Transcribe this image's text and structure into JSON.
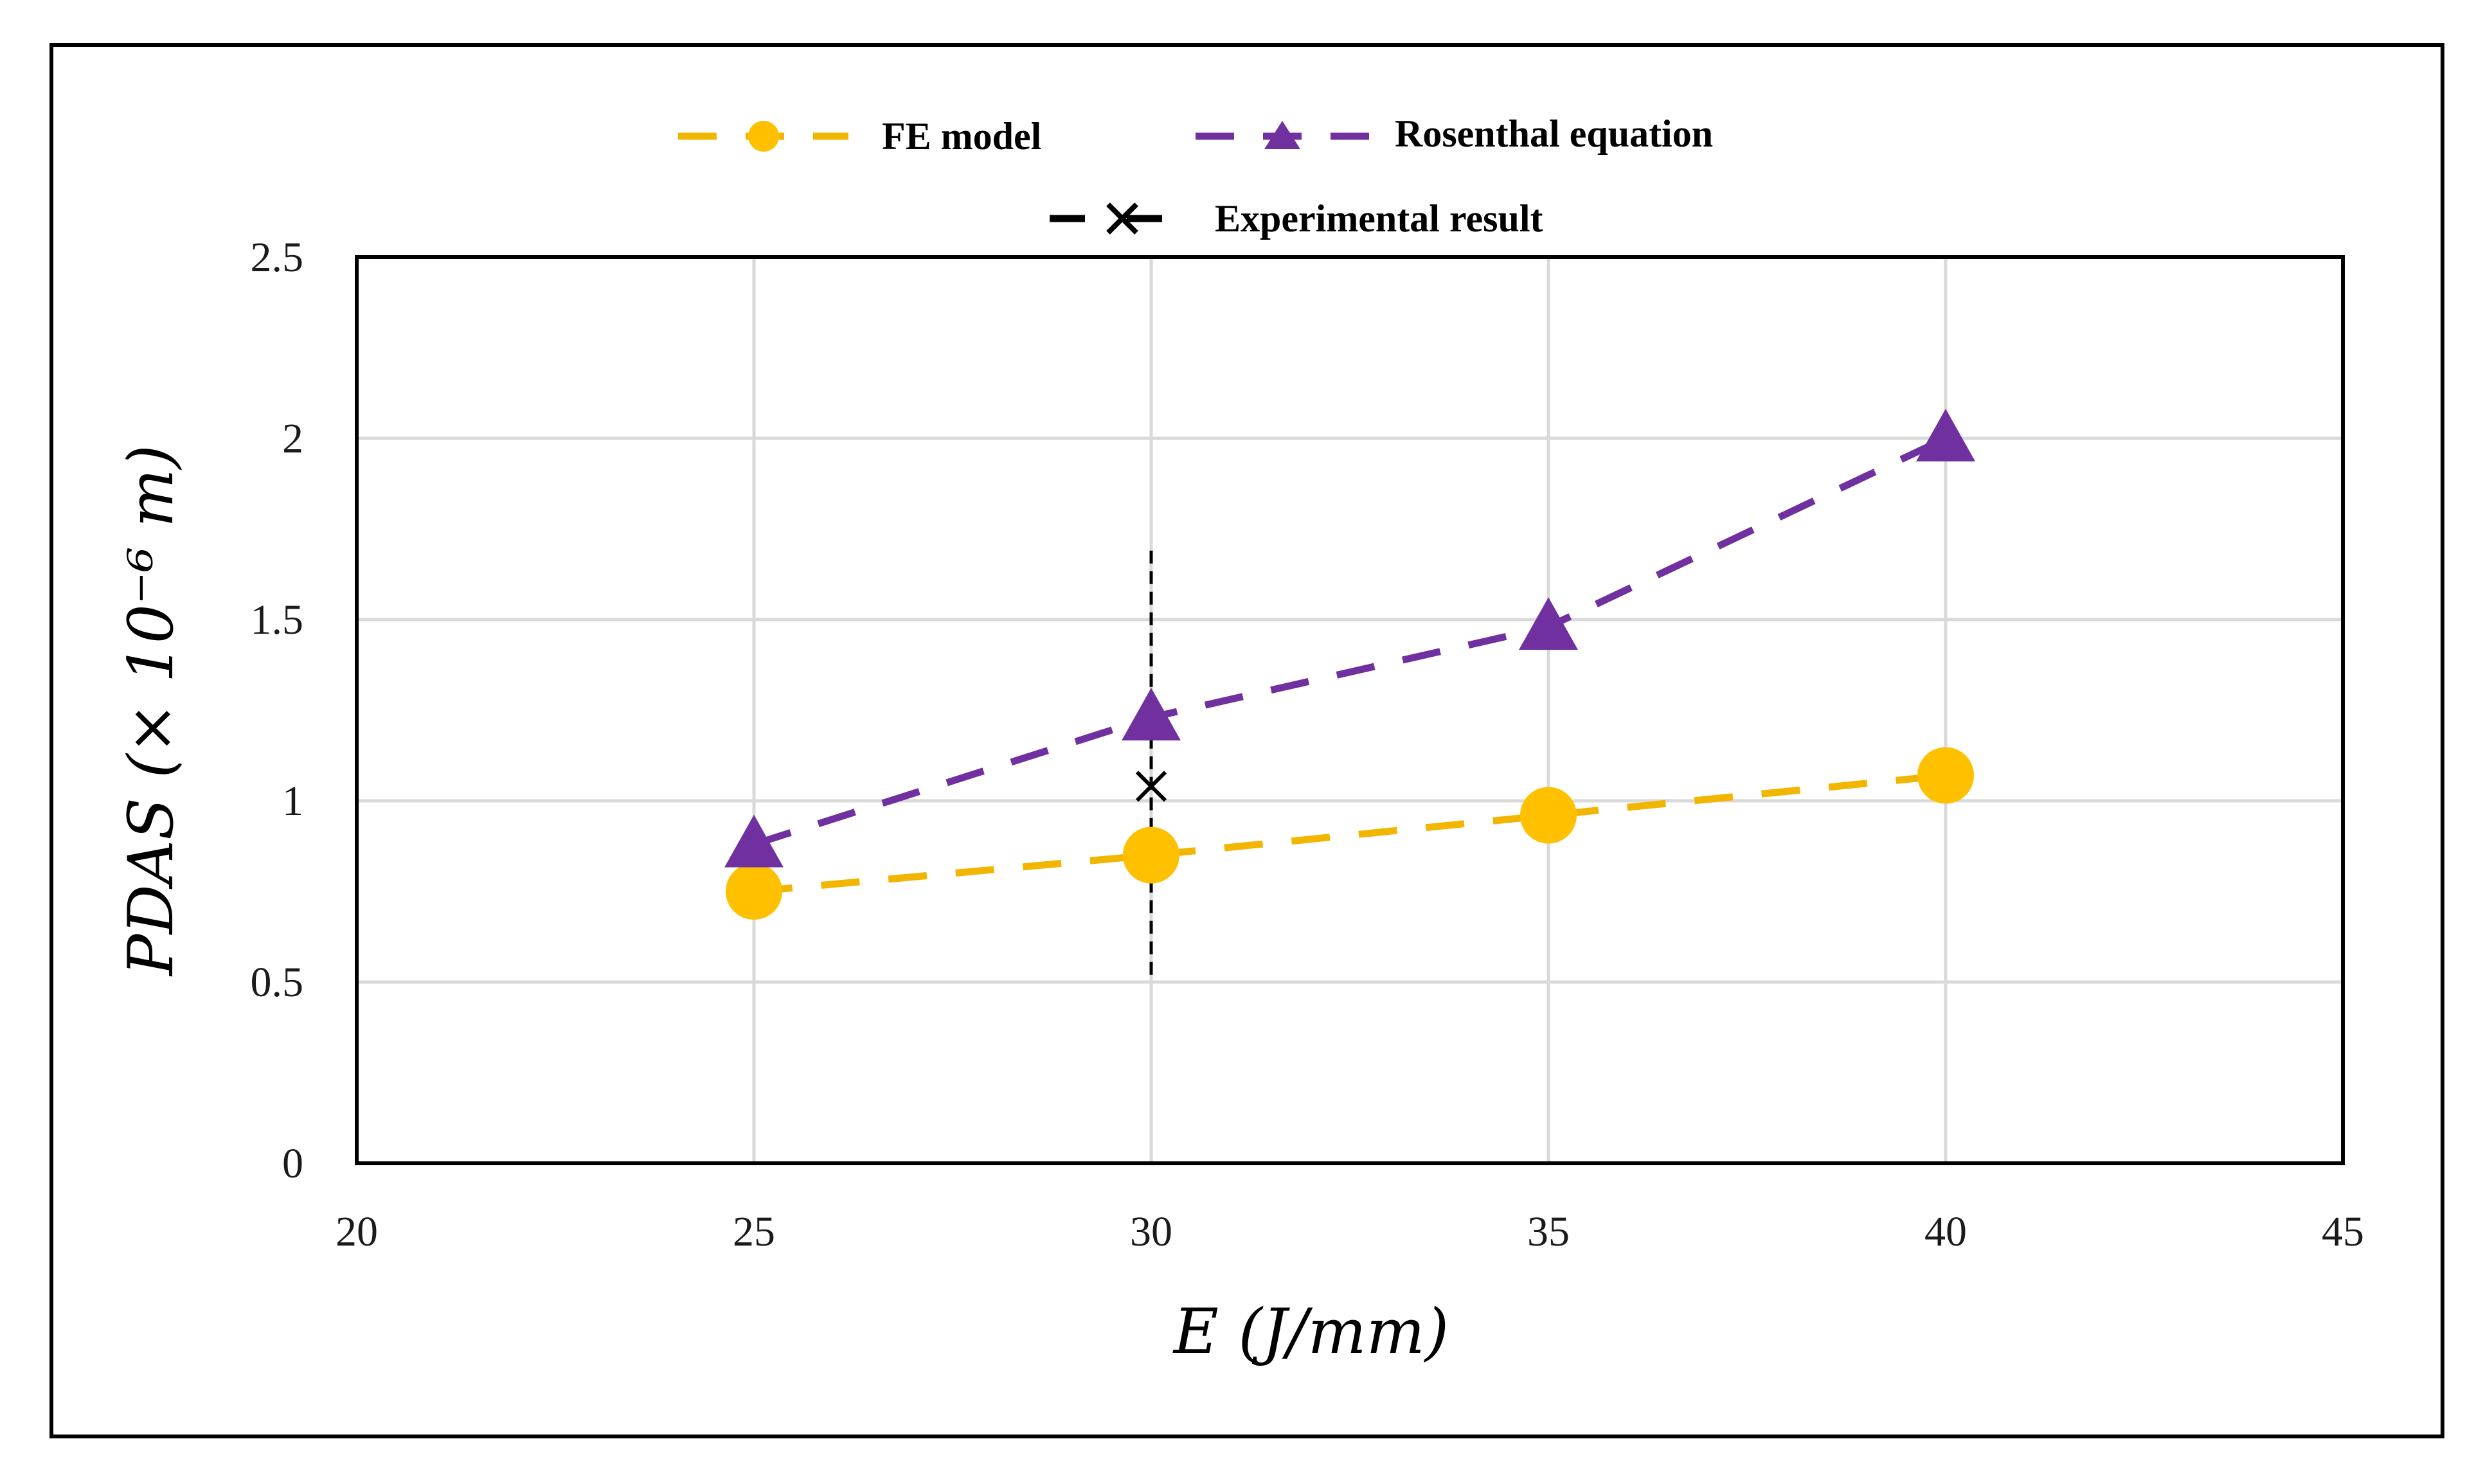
{
  "chart_data": {
    "type": "line",
    "title": "",
    "xlabel": "E (J/mm)",
    "ylabel": "PDAS (× 10⁻⁶ m)",
    "xlim": [
      20,
      45
    ],
    "ylim": [
      0,
      2.5
    ],
    "xticks": [
      20,
      25,
      30,
      35,
      40,
      45
    ],
    "yticks": [
      0,
      0.5,
      1,
      1.5,
      2,
      2.5
    ],
    "xtick_labels": [
      "20",
      "25",
      "30",
      "35",
      "40",
      "45"
    ],
    "ytick_labels": [
      "0",
      "0.5",
      "1",
      "1.5",
      "2",
      "2.5"
    ],
    "grid": true,
    "legend_position": "top",
    "series": [
      {
        "name": "FE model",
        "marker": "circle",
        "line_style": "dashed",
        "color": "#FFC000",
        "line_color": "#F2B600",
        "x": [
          25,
          30,
          35,
          40
        ],
        "y": [
          0.75,
          0.85,
          0.96,
          1.07
        ]
      },
      {
        "name": "Rosenthal equation",
        "marker": "triangle",
        "line_style": "dashed",
        "color": "#7030A0",
        "line_color": "#7030A0",
        "x": [
          25,
          30,
          35,
          40
        ],
        "y": [
          0.88,
          1.23,
          1.48,
          2.0
        ]
      },
      {
        "name": "Experimental result",
        "marker": "x",
        "line_style": "dashed",
        "color": "#000000",
        "line_color": "#000000",
        "x": [
          30
        ],
        "y": [
          1.04
        ],
        "error_low": [
          0.52
        ],
        "error_high": [
          1.7
        ]
      }
    ]
  }
}
